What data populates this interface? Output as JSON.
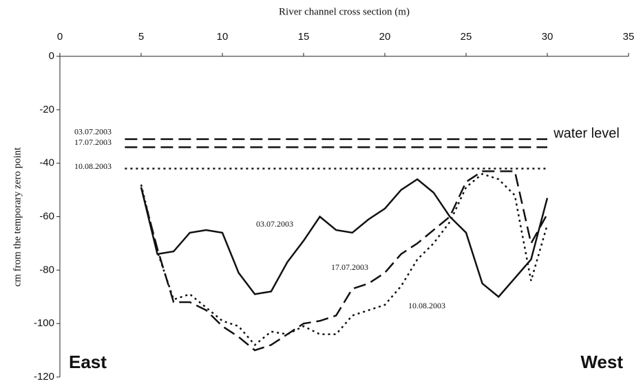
{
  "chart_data": {
    "type": "line",
    "x_label": "River channel cross section (m)",
    "y_label": "cm from the temporary zero point",
    "x": [
      5,
      6,
      7,
      8,
      9,
      10,
      11,
      12,
      13,
      14,
      15,
      16,
      17,
      18,
      19,
      20,
      21,
      22,
      23,
      24,
      25,
      26,
      27,
      28,
      29,
      30
    ],
    "series": [
      {
        "name": "03.07.2003",
        "color": "#111111",
        "dash": "solid",
        "values": [
          -49,
          -74,
          -73,
          -66,
          -65,
          -66,
          -81,
          -89,
          -88,
          -77,
          -69,
          -60,
          -65,
          -66,
          -61,
          -57,
          -50,
          -46,
          -51,
          -60,
          -66,
          -85,
          -90,
          -83,
          -76,
          -53
        ]
      },
      {
        "name": "17.07.2003",
        "color": "#111111",
        "dash": "dashed",
        "values": [
          -49,
          -72,
          -92,
          -92,
          -95,
          -101,
          -105,
          -110,
          -108,
          -104,
          -100,
          -99,
          -97,
          -87,
          -85,
          -81,
          -74,
          -70,
          -65,
          -60,
          -47,
          -43,
          -43,
          -43,
          -70,
          -59
        ]
      },
      {
        "name": "10.08.2003",
        "color": "#111111",
        "dash": "dotted",
        "values": [
          -48,
          -73,
          -91,
          -89,
          -94,
          -99,
          -101,
          -108,
          -103,
          -104,
          -101,
          -104,
          -104,
          -97,
          -95,
          -93,
          -86,
          -76,
          -70,
          -62,
          -49,
          -44,
          -46,
          -52,
          -84,
          -63
        ]
      }
    ],
    "water_levels": {
      "label": "water level",
      "x": [
        4,
        30
      ],
      "lines": [
        {
          "name": "03.07.2003",
          "value": -31,
          "dash": "dashed"
        },
        {
          "name": "17.07.2003",
          "value": -34,
          "dash": "dashed"
        },
        {
          "name": "10.08.2003",
          "value": -42,
          "dash": "dotted"
        }
      ]
    },
    "side_labels": [
      "East",
      "West"
    ],
    "xlim": [
      0,
      35
    ],
    "xticks": [
      0,
      5,
      10,
      15,
      20,
      25,
      30,
      35
    ],
    "ylim": [
      -120,
      0
    ],
    "yticks": [
      -120,
      -100,
      -80,
      -60,
      -40,
      -20,
      0
    ],
    "grid": false
  }
}
